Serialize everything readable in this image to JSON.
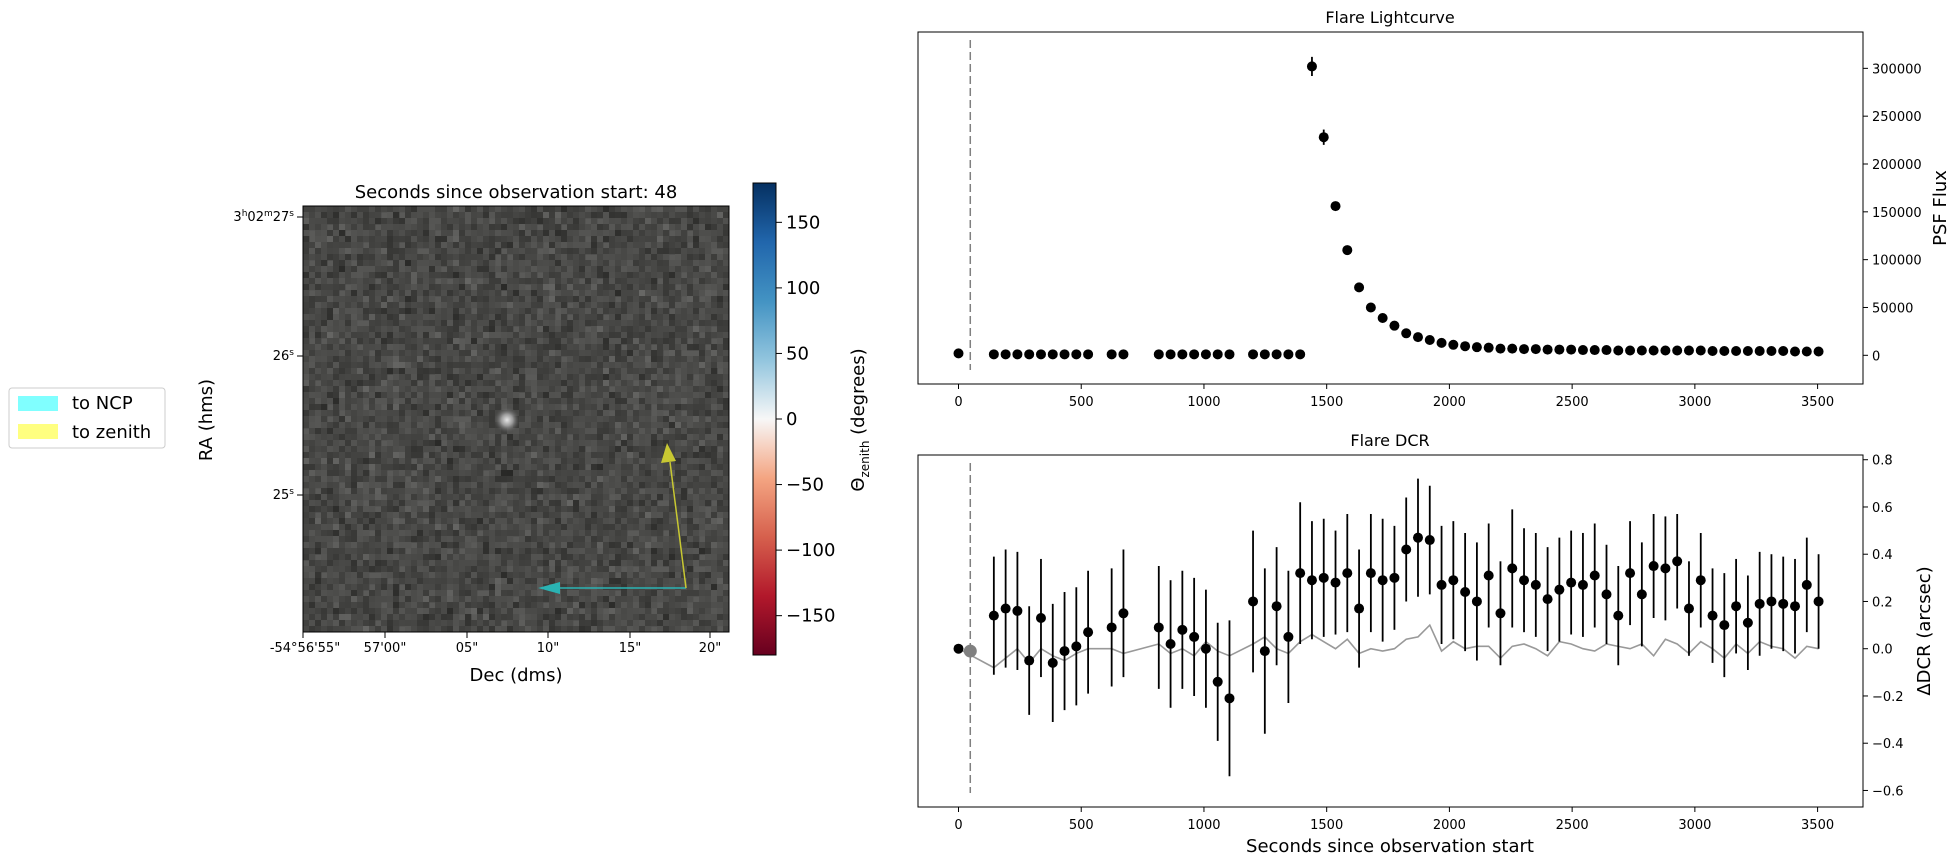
{
  "legend": {
    "items": [
      {
        "label": "to NCP",
        "color": "#80ffff"
      },
      {
        "label": "to zenith",
        "color": "#ffff80"
      }
    ]
  },
  "image_panel": {
    "title": "Seconds since observation start: 48",
    "xlabel": "Dec (dms)",
    "ylabel": "RA (hms)",
    "xticks": [
      "-54°56'55\"",
      "57'00\"",
      "05\"",
      "10\"",
      "15\"",
      "20\""
    ],
    "yticks": {
      "t1_base": "3",
      "t1_h": "h",
      "t1_mid": "02",
      "t1_m": "m",
      "t1_end": "27",
      "t1_s": "s",
      "t2_base": "26",
      "t2_s": "s",
      "t3_base": "25",
      "t3_s": "s"
    },
    "arrow_ncp_color": "#2ab3b3",
    "arrow_zenith_color": "#c8c832"
  },
  "colorbar": {
    "label_theta": "Θ",
    "label_sub": "zenith",
    "label_rest": " (degrees)",
    "range": [
      -180,
      180
    ],
    "ticks": [
      150,
      100,
      50,
      0,
      -50,
      -100,
      -150
    ],
    "tick_labels": [
      "150",
      "100",
      "50",
      "0",
      "−50",
      "−100",
      "−150"
    ]
  },
  "chart_data": [
    {
      "type": "scatter",
      "title": "Flare Lightcurve",
      "xlabel": "",
      "ylabel": "PSF Flux",
      "xlim": [
        -165,
        3685
      ],
      "ylim": [
        -30000,
        338000
      ],
      "xticks": [
        0,
        500,
        1000,
        1500,
        2000,
        2500,
        3000,
        3500
      ],
      "yticks": [
        0,
        50000,
        100000,
        150000,
        200000,
        250000,
        300000
      ],
      "marker_line_x": 48,
      "x": [
        0,
        144,
        192,
        240,
        288,
        336,
        384,
        432,
        480,
        528,
        624,
        672,
        816,
        864,
        912,
        960,
        1008,
        1056,
        1104,
        1200,
        1248,
        1296,
        1344,
        1392,
        1440,
        1488,
        1536,
        1584,
        1632,
        1680,
        1728,
        1776,
        1824,
        1872,
        1920,
        1968,
        2016,
        2064,
        2112,
        2160,
        2208,
        2256,
        2304,
        2352,
        2400,
        2448,
        2496,
        2544,
        2592,
        2640,
        2688,
        2736,
        2784,
        2832,
        2880,
        2928,
        2976,
        3024,
        3072,
        3120,
        3168,
        3216,
        3264,
        3312,
        3360,
        3408,
        3456,
        3504
      ],
      "y": [
        2000,
        1000,
        1000,
        1000,
        1000,
        1000,
        1000,
        1000,
        1000,
        1000,
        1000,
        1000,
        1000,
        1000,
        1000,
        1000,
        1000,
        1000,
        1000,
        1000,
        1000,
        1000,
        1000,
        1000,
        302000,
        228000,
        156000,
        110000,
        71000,
        50000,
        39000,
        31000,
        23000,
        19000,
        16000,
        13000,
        11000,
        9500,
        8500,
        8000,
        7000,
        7000,
        6500,
        6500,
        6000,
        6000,
        6000,
        5500,
        5500,
        5500,
        5000,
        5000,
        5000,
        5000,
        5000,
        5000,
        5000,
        5000,
        4500,
        4500,
        4500,
        4500,
        4500,
        4500,
        4500,
        4000,
        4000,
        4000
      ],
      "yerr": [
        0,
        0,
        0,
        0,
        0,
        0,
        0,
        0,
        0,
        0,
        0,
        0,
        0,
        0,
        0,
        0,
        0,
        0,
        0,
        0,
        0,
        0,
        0,
        0,
        10000,
        8000,
        0,
        0,
        0,
        0,
        0,
        0,
        0,
        0,
        0,
        0,
        0,
        0,
        0,
        0,
        0,
        0,
        0,
        0,
        0,
        0,
        0,
        0,
        0,
        0,
        0,
        0,
        0,
        0,
        0,
        0,
        0,
        0,
        0,
        0,
        0,
        0,
        0,
        0,
        0,
        0,
        0,
        0
      ]
    },
    {
      "type": "scatter",
      "title": "Flare DCR",
      "xlabel": "Seconds since observation start",
      "ylabel": "ΔDCR (arcsec)",
      "xlim": [
        -165,
        3685
      ],
      "ylim": [
        -0.67,
        0.82
      ],
      "xticks": [
        0,
        500,
        1000,
        1500,
        2000,
        2500,
        3000,
        3500
      ],
      "yticks": [
        -0.6,
        -0.4,
        -0.2,
        0.0,
        0.2,
        0.4,
        0.6,
        0.8
      ],
      "ytick_labels": [
        "−0.6",
        "−0.4",
        "−0.2",
        "0.0",
        "0.2",
        "0.4",
        "0.6",
        "0.8"
      ],
      "marker_line_x": 48,
      "highlight_point": {
        "x": 48,
        "y": -0.01
      },
      "x": [
        0,
        144,
        192,
        240,
        288,
        336,
        384,
        432,
        480,
        528,
        624,
        672,
        816,
        864,
        912,
        960,
        1008,
        1056,
        1104,
        1200,
        1248,
        1296,
        1344,
        1392,
        1440,
        1488,
        1536,
        1584,
        1632,
        1680,
        1728,
        1776,
        1824,
        1872,
        1920,
        1968,
        2016,
        2064,
        2112,
        2160,
        2208,
        2256,
        2304,
        2352,
        2400,
        2448,
        2496,
        2544,
        2592,
        2640,
        2688,
        2736,
        2784,
        2832,
        2880,
        2928,
        2976,
        3024,
        3072,
        3120,
        3168,
        3216,
        3264,
        3312,
        3360,
        3408,
        3456,
        3504
      ],
      "y": [
        0.0,
        0.14,
        0.17,
        0.16,
        -0.05,
        0.13,
        -0.06,
        -0.01,
        0.01,
        0.07,
        0.09,
        0.15,
        0.09,
        0.02,
        0.08,
        0.05,
        0.0,
        -0.14,
        -0.21,
        0.2,
        -0.01,
        0.18,
        0.05,
        0.32,
        0.29,
        0.3,
        0.28,
        0.32,
        0.17,
        0.32,
        0.29,
        0.3,
        0.42,
        0.47,
        0.46,
        0.27,
        0.29,
        0.24,
        0.2,
        0.31,
        0.15,
        0.34,
        0.29,
        0.27,
        0.21,
        0.25,
        0.28,
        0.27,
        0.31,
        0.23,
        0.14,
        0.32,
        0.23,
        0.35,
        0.34,
        0.37,
        0.17,
        0.29,
        0.14,
        0.1,
        0.18,
        0.11,
        0.19,
        0.2,
        0.19,
        0.18,
        0.27,
        0.2
      ],
      "yerr": [
        0,
        0.25,
        0.25,
        0.25,
        0.23,
        0.25,
        0.25,
        0.25,
        0.25,
        0.26,
        0.25,
        0.27,
        0.26,
        0.27,
        0.25,
        0.25,
        0.25,
        0.25,
        0.33,
        0.3,
        0.35,
        0.25,
        0.28,
        0.3,
        0.25,
        0.25,
        0.22,
        0.25,
        0.25,
        0.25,
        0.26,
        0.22,
        0.22,
        0.25,
        0.23,
        0.25,
        0.25,
        0.25,
        0.25,
        0.22,
        0.22,
        0.25,
        0.22,
        0.22,
        0.22,
        0.22,
        0.22,
        0.22,
        0.22,
        0.21,
        0.21,
        0.22,
        0.22,
        0.22,
        0.22,
        0.2,
        0.2,
        0.2,
        0.2,
        0.22,
        0.2,
        0.2,
        0.22,
        0.2,
        0.2,
        0.2,
        0.2,
        0.2
      ],
      "gray_line_y": [
        0.0,
        -0.08,
        -0.04,
        0.0,
        -0.06,
        0.0,
        -0.03,
        -0.05,
        -0.02,
        0.0,
        0.0,
        -0.02,
        0.02,
        -0.02,
        0.0,
        -0.03,
        0.03,
        -0.01,
        -0.03,
        0.02,
        0.05,
        0.0,
        -0.02,
        0.03,
        0.06,
        0.03,
        0.0,
        0.04,
        -0.02,
        0.0,
        -0.01,
        0.0,
        0.04,
        0.05,
        0.1,
        -0.01,
        0.03,
        0.0,
        0.01,
        0.01,
        -0.04,
        0.01,
        0.02,
        0.0,
        -0.03,
        0.03,
        0.02,
        0.0,
        -0.01,
        0.02,
        0.01,
        0.0,
        0.02,
        -0.03,
        0.04,
        0.02,
        -0.02,
        0.03,
        0.0,
        -0.04,
        0.02,
        -0.02,
        0.03,
        0.01,
        0.0,
        -0.04,
        0.01,
        0.0
      ],
      "gray_line_color": "#999999"
    }
  ]
}
